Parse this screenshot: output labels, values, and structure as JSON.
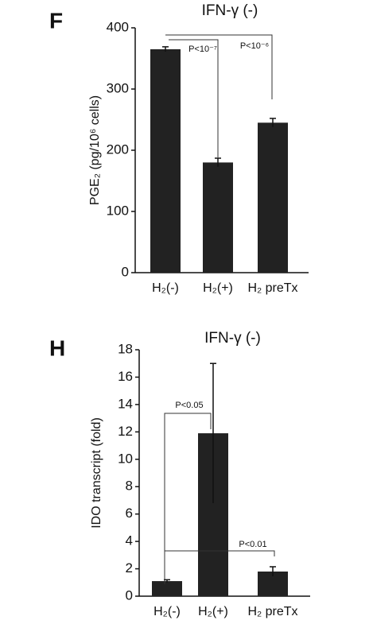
{
  "chart_data": [
    {
      "type": "bar",
      "panel": "F",
      "title": "IFN-γ (-)",
      "y_label": "PGE₂ (pg/10⁶ cells)",
      "categories": [
        "H₂(-)",
        "H₂(+)",
        "H₂ preTx"
      ],
      "values": [
        365,
        180,
        245
      ],
      "errors": [
        4,
        7,
        7
      ],
      "color": "#222222",
      "ylim": [
        0,
        400
      ],
      "yticks": [
        0,
        100,
        200,
        300,
        400
      ],
      "annotations": [
        "P<10⁻⁷",
        "P<10⁻⁶"
      ]
    },
    {
      "type": "bar",
      "panel": "H",
      "title": "IFN-γ (-)",
      "y_label": "IDO transcript (fold)",
      "categories": [
        "H₂(-)",
        "H₂(+)",
        "H₂ preTx"
      ],
      "values": [
        1.1,
        11.9,
        1.8
      ],
      "errors": [
        0.1,
        5.1,
        0.35
      ],
      "color": "#222222",
      "ylim": [
        0,
        18
      ],
      "yticks": [
        0,
        2,
        4,
        6,
        8,
        10,
        12,
        14,
        16,
        18
      ],
      "annotations": [
        "P<0.05",
        "P<0.01"
      ]
    }
  ]
}
